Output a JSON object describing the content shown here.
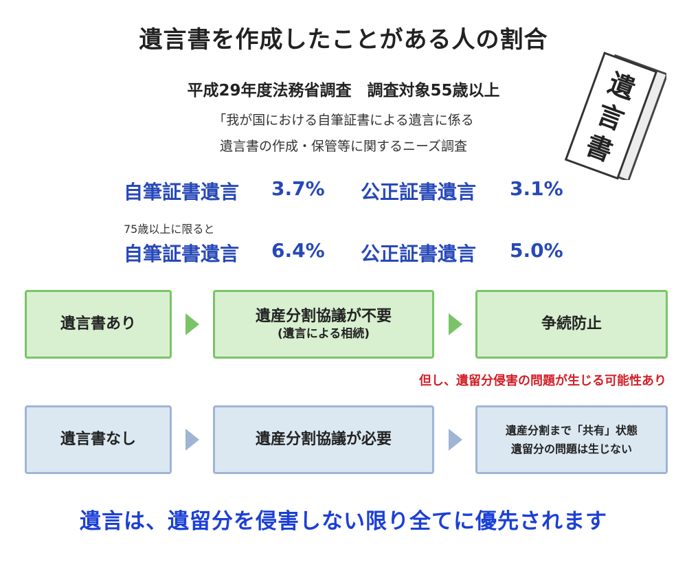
{
  "title": "遺言書を作成したことがある人の割合",
  "subtitle": "平成29年度法務省調査　調査対象55歳以上",
  "survey": {
    "line1": "「我が国における自筆証書による遺言に係る",
    "line2": "遺言書の作成・保管等に関するニーズ調査"
  },
  "stats": {
    "all": {
      "holographic_label": "自筆証書遺言",
      "holographic_value": "3.7%",
      "notarial_label": "公正証書遺言",
      "notarial_value": "3.1%"
    },
    "over75_note": "75歳以上に限ると",
    "over75": {
      "holographic_label": "自筆証書遺言",
      "holographic_value": "6.4%",
      "notarial_label": "公正証書遺言",
      "notarial_value": "5.0%"
    }
  },
  "flow_with_will": {
    "step1": "遺言書あり",
    "step2": "遺産分割協議が不要",
    "step2_sub": "(遺言による相続)",
    "step3": "争続防止"
  },
  "caveat": "但し、遺留分侵害の問題が生じる可能性あり",
  "flow_without_will": {
    "step1": "遺言書なし",
    "step2": "遺産分割協議が必要",
    "step3_line1": "遺産分割まで「共有」状態",
    "step3_line2": "遺留分の問題は生じない"
  },
  "conclusion": "遺言は、遺留分を侵害しない限り全てに優先されます",
  "illustration": {
    "icon": "will-document-icon",
    "label": "遺言書"
  },
  "colors": {
    "stat_blue": "#2748b8",
    "green_fill": "#d8efd0",
    "green_border": "#79c467",
    "blue_fill": "#dbe8f1",
    "blue_border": "#9fb5d4",
    "caveat_red": "#d21f26",
    "conclusion_blue": "#1b3fd6"
  }
}
